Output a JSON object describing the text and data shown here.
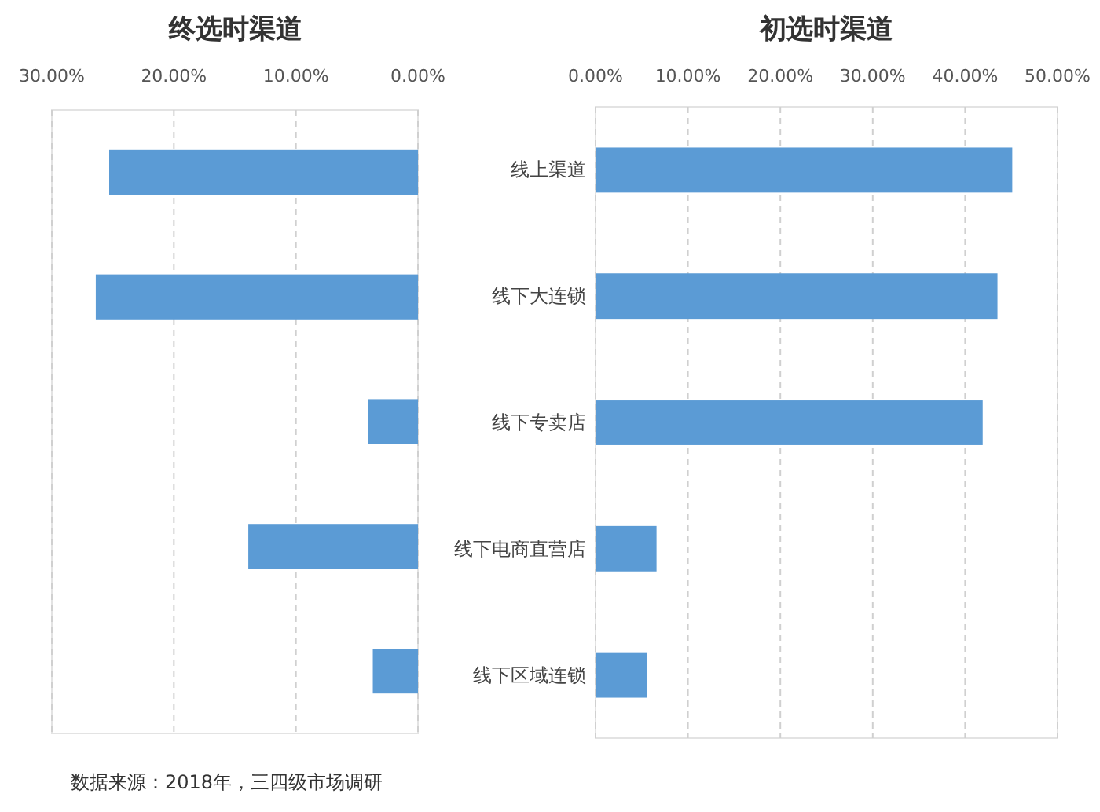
{
  "chart_data": [
    {
      "type": "bar",
      "orientation": "horizontal",
      "title": "终选时渠道",
      "categories": [
        null,
        null,
        null,
        null,
        null
      ],
      "values": [
        25.3,
        26.4,
        4.1,
        13.9,
        3.7
      ],
      "color": "#5b9bd5",
      "xlim": [
        30,
        0
      ],
      "xticks": [
        {
          "value": 30,
          "label": "30.00%"
        },
        {
          "value": 20,
          "label": "20.00%"
        },
        {
          "value": 10,
          "label": "10.00%"
        },
        {
          "value": 0,
          "label": "0.00%"
        }
      ],
      "grid": "x",
      "tick_labels": "x",
      "annotations": [
        "数据来源：2018年，三四级市场调研"
      ]
    },
    {
      "type": "bar",
      "orientation": "horizontal",
      "title": "初选时渠道",
      "categories": [
        "线上渠道",
        "线下大连锁",
        "线下专卖店",
        "线下电商直营店",
        "线下区域连锁"
      ],
      "values": [
        45.1,
        43.5,
        41.9,
        6.6,
        5.6
      ],
      "color": "#5b9bd5",
      "xlim": [
        0,
        50
      ],
      "xticks": [
        {
          "value": 0,
          "label": "0.00%"
        },
        {
          "value": 10,
          "label": "10.00%"
        },
        {
          "value": 20,
          "label": "20.00%"
        },
        {
          "value": 30,
          "label": "30.00%"
        },
        {
          "value": 40,
          "label": "40.00%"
        },
        {
          "value": 50,
          "label": "50.00%"
        }
      ],
      "grid": "x"
    }
  ]
}
